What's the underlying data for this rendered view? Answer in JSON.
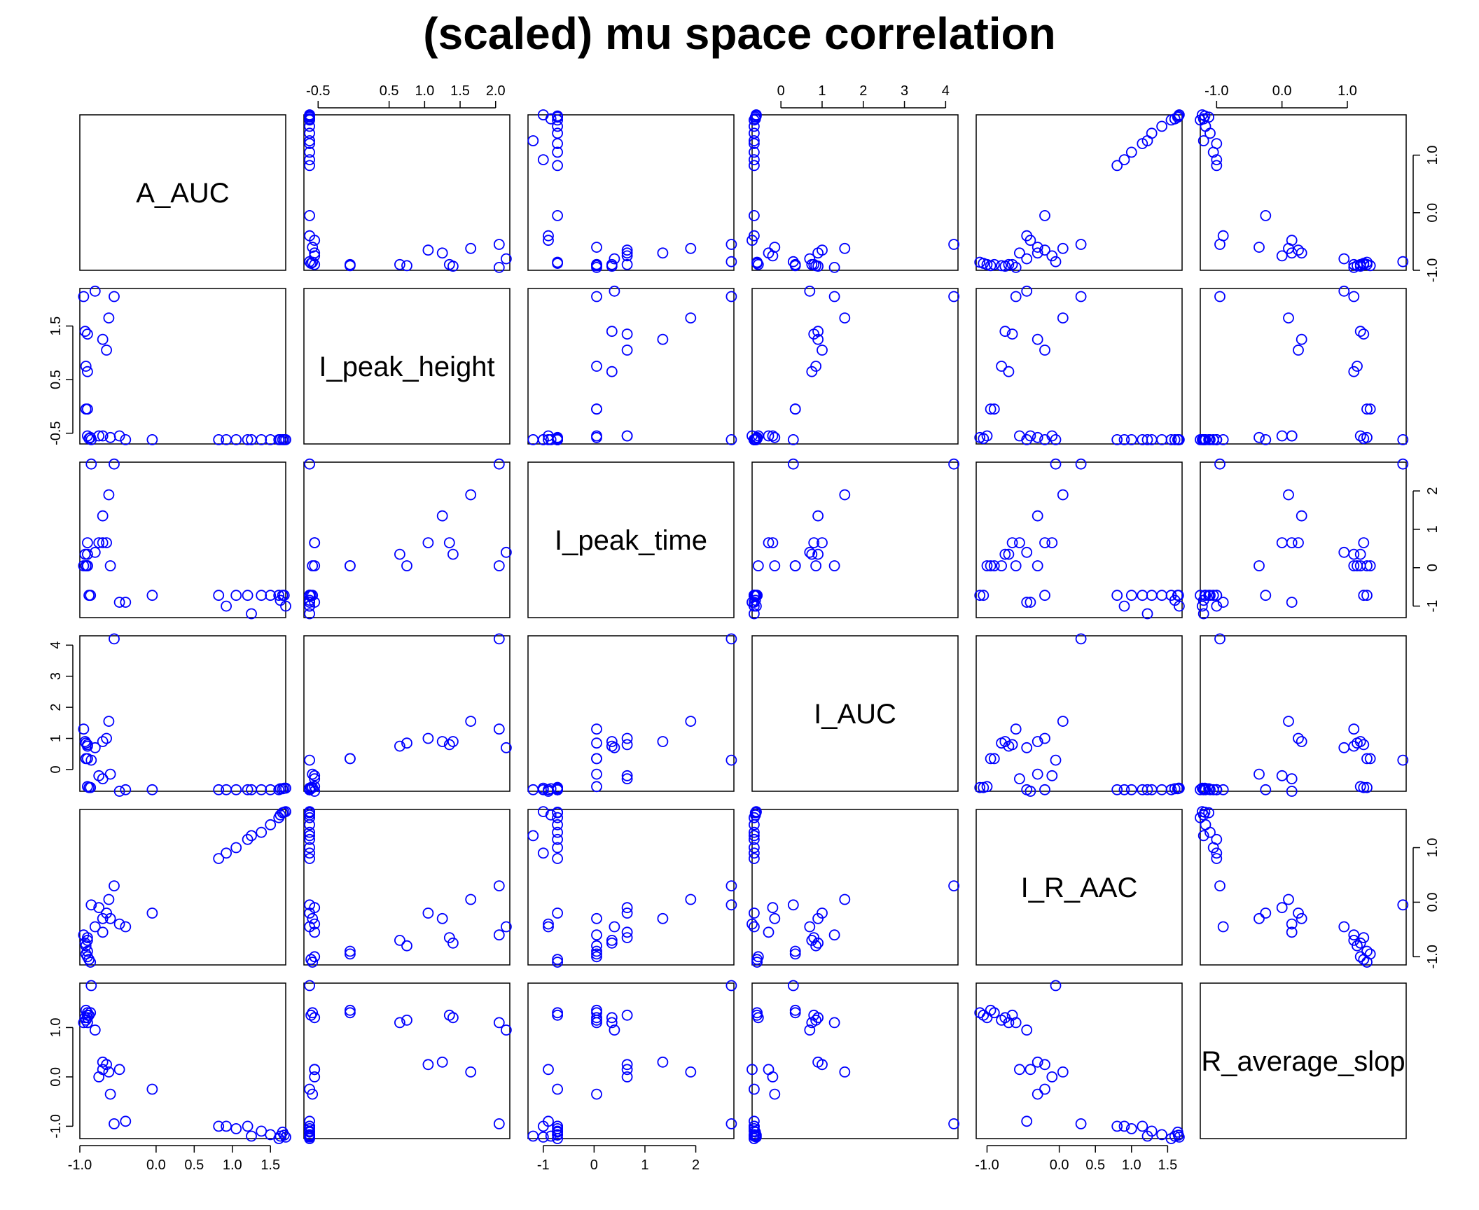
{
  "chart_data": {
    "type": "scatter",
    "title": "(scaled) mu space correlation",
    "variables": [
      "A_AUC",
      "I_peak_height",
      "I_peak_time",
      "I_AUC",
      "I_R_AAC",
      "R_average_slop"
    ],
    "point_color": "#0000ff",
    "grid": false,
    "ranges": {
      "A_AUC": [
        -1.0,
        1.7
      ],
      "I_peak_height": [
        -0.7,
        2.2
      ],
      "I_peak_time": [
        -1.3,
        2.75
      ],
      "I_AUC": [
        -0.7,
        4.3
      ],
      "I_R_AAC": [
        -1.15,
        1.7
      ],
      "R_average_slop": [
        -1.25,
        1.9
      ]
    },
    "axis_ticks": {
      "A_AUC": [
        "-1.0",
        "0.0",
        "0.5",
        "1.0",
        "1.5"
      ],
      "I_peak_height": [
        "-0.5",
        "0.5",
        "1.0",
        "1.5",
        "2.0"
      ],
      "I_peak_time": [
        "-1",
        "0",
        "1",
        "2"
      ],
      "I_AUC": [
        "0",
        "1",
        "2",
        "3",
        "4"
      ],
      "I_R_AAC": [
        "-1.0",
        "0.0",
        "0.5",
        "1.0",
        "1.5"
      ],
      "R_average_slop": [
        "-1.0",
        "0.0",
        "1.0"
      ]
    },
    "left_axis_ticks": {
      "I_peak_height": [
        "-0.5",
        "0.5",
        "1.5"
      ],
      "I_AUC": [
        "0",
        "1",
        "2",
        "3",
        "4"
      ],
      "R_average_slop": [
        "-1.0",
        "0.0",
        "1.0"
      ]
    },
    "right_axis_ticks": {
      "A_AUC": [
        "-1.0",
        "0.0",
        "1.0"
      ],
      "I_peak_time": [
        "-1",
        "0",
        "1",
        "2"
      ],
      "I_R_AAC": [
        "-1.0",
        "0.0",
        "1.0"
      ]
    },
    "observations": [
      {
        "A_AUC": 1.68,
        "I_peak_height": -0.62,
        "I_peak_time": -0.72,
        "I_AUC": -0.6,
        "I_R_AAC": 1.65,
        "R_average_slop": -1.18
      },
      {
        "A_AUC": 1.7,
        "I_peak_height": -0.62,
        "I_peak_time": -1.0,
        "I_AUC": -0.6,
        "I_R_AAC": 1.66,
        "R_average_slop": -1.22
      },
      {
        "A_AUC": 1.66,
        "I_peak_height": -0.62,
        "I_peak_time": -0.72,
        "I_AUC": -0.62,
        "I_R_AAC": 1.64,
        "R_average_slop": -1.12
      },
      {
        "A_AUC": 1.63,
        "I_peak_height": -0.62,
        "I_peak_time": -0.85,
        "I_AUC": -0.62,
        "I_R_AAC": 1.6,
        "R_average_slop": -1.2
      },
      {
        "A_AUC": 1.61,
        "I_peak_height": -0.62,
        "I_peak_time": -0.72,
        "I_AUC": -0.65,
        "I_R_AAC": 1.55,
        "R_average_slop": -1.25
      },
      {
        "A_AUC": 1.5,
        "I_peak_height": -0.62,
        "I_peak_time": -0.72,
        "I_AUC": -0.65,
        "I_R_AAC": 1.42,
        "R_average_slop": -1.17
      },
      {
        "A_AUC": 1.38,
        "I_peak_height": -0.62,
        "I_peak_time": -0.72,
        "I_AUC": -0.65,
        "I_R_AAC": 1.28,
        "R_average_slop": -1.1
      },
      {
        "A_AUC": 1.25,
        "I_peak_height": -0.62,
        "I_peak_time": -1.2,
        "I_AUC": -0.65,
        "I_R_AAC": 1.22,
        "R_average_slop": -1.2
      },
      {
        "A_AUC": 1.2,
        "I_peak_height": -0.62,
        "I_peak_time": -0.72,
        "I_AUC": -0.65,
        "I_R_AAC": 1.15,
        "R_average_slop": -1.0
      },
      {
        "A_AUC": 1.05,
        "I_peak_height": -0.62,
        "I_peak_time": -0.72,
        "I_AUC": -0.65,
        "I_R_AAC": 1.0,
        "R_average_slop": -1.05
      },
      {
        "A_AUC": 0.92,
        "I_peak_height": -0.62,
        "I_peak_time": -1.0,
        "I_AUC": -0.65,
        "I_R_AAC": 0.9,
        "R_average_slop": -1.0
      },
      {
        "A_AUC": 0.82,
        "I_peak_height": -0.62,
        "I_peak_time": -0.72,
        "I_AUC": -0.65,
        "I_R_AAC": 0.8,
        "R_average_slop": -1.0
      },
      {
        "A_AUC": -0.05,
        "I_peak_height": -0.62,
        "I_peak_time": -0.72,
        "I_AUC": -0.65,
        "I_R_AAC": -0.2,
        "R_average_slop": -0.25
      },
      {
        "A_AUC": -0.4,
        "I_peak_height": -0.62,
        "I_peak_time": -0.9,
        "I_AUC": -0.65,
        "I_R_AAC": -0.45,
        "R_average_slop": -0.9
      },
      {
        "A_AUC": -0.9,
        "I_peak_height": -0.55,
        "I_peak_time": 0.05,
        "I_AUC": -0.55,
        "I_R_AAC": -1.0,
        "R_average_slop": 1.2
      },
      {
        "A_AUC": -0.88,
        "I_peak_height": -0.6,
        "I_peak_time": -0.72,
        "I_AUC": -0.58,
        "I_R_AAC": -1.05,
        "R_average_slop": 1.25
      },
      {
        "A_AUC": -0.86,
        "I_peak_height": -0.58,
        "I_peak_time": -0.72,
        "I_AUC": -0.58,
        "I_R_AAC": -1.1,
        "R_average_slop": 1.3
      },
      {
        "A_AUC": -0.92,
        "I_peak_height": -0.05,
        "I_peak_time": 0.05,
        "I_AUC": 0.35,
        "I_R_AAC": -0.95,
        "R_average_slop": 1.35
      },
      {
        "A_AUC": -0.9,
        "I_peak_height": -0.05,
        "I_peak_time": 0.05,
        "I_AUC": 0.35,
        "I_R_AAC": -0.9,
        "R_average_slop": 1.3
      },
      {
        "A_AUC": -0.92,
        "I_peak_height": 0.75,
        "I_peak_time": 0.05,
        "I_AUC": 0.85,
        "I_R_AAC": -0.8,
        "R_average_slop": 1.15
      },
      {
        "A_AUC": -0.9,
        "I_peak_height": 0.65,
        "I_peak_time": 0.35,
        "I_AUC": 0.75,
        "I_R_AAC": -0.7,
        "R_average_slop": 1.1
      },
      {
        "A_AUC": -0.93,
        "I_peak_height": 1.4,
        "I_peak_time": 0.35,
        "I_AUC": 0.9,
        "I_R_AAC": -0.75,
        "R_average_slop": 1.2
      },
      {
        "A_AUC": -0.9,
        "I_peak_height": 1.35,
        "I_peak_time": 0.65,
        "I_AUC": 0.8,
        "I_R_AAC": -0.65,
        "R_average_slop": 1.25
      },
      {
        "A_AUC": -0.95,
        "I_peak_height": 2.05,
        "I_peak_time": 0.05,
        "I_AUC": 1.3,
        "I_R_AAC": -0.6,
        "R_average_slop": 1.1
      },
      {
        "A_AUC": -0.8,
        "I_peak_height": 2.15,
        "I_peak_time": 0.4,
        "I_AUC": 0.7,
        "I_R_AAC": -0.45,
        "R_average_slop": 0.95
      },
      {
        "A_AUC": -0.7,
        "I_peak_height": 1.25,
        "I_peak_time": 1.35,
        "I_AUC": 0.9,
        "I_R_AAC": -0.3,
        "R_average_slop": 0.3
      },
      {
        "A_AUC": -0.65,
        "I_peak_height": 1.05,
        "I_peak_time": 0.65,
        "I_AUC": 1.0,
        "I_R_AAC": -0.2,
        "R_average_slop": 0.25
      },
      {
        "A_AUC": -0.62,
        "I_peak_height": 1.65,
        "I_peak_time": 1.9,
        "I_AUC": 1.55,
        "I_R_AAC": 0.05,
        "R_average_slop": 0.1
      },
      {
        "A_AUC": -0.55,
        "I_peak_height": 2.05,
        "I_peak_time": 2.7,
        "I_AUC": 4.2,
        "I_R_AAC": 0.3,
        "R_average_slop": -0.95
      },
      {
        "A_AUC": -0.48,
        "I_peak_height": -0.55,
        "I_peak_time": -0.9,
        "I_AUC": -0.7,
        "I_R_AAC": -0.4,
        "R_average_slop": 0.15
      },
      {
        "A_AUC": -0.85,
        "I_peak_height": -0.62,
        "I_peak_time": 2.7,
        "I_AUC": 0.3,
        "I_R_AAC": -0.05,
        "R_average_slop": 1.85
      },
      {
        "A_AUC": -0.75,
        "I_peak_height": -0.55,
        "I_peak_time": 0.65,
        "I_AUC": -0.2,
        "I_R_AAC": -0.1,
        "R_average_slop": 0.0
      },
      {
        "A_AUC": -0.6,
        "I_peak_height": -0.58,
        "I_peak_time": 0.05,
        "I_AUC": -0.15,
        "I_R_AAC": -0.3,
        "R_average_slop": -0.35
      },
      {
        "A_AUC": -0.7,
        "I_peak_height": -0.55,
        "I_peak_time": 0.65,
        "I_AUC": -0.3,
        "I_R_AAC": -0.55,
        "R_average_slop": 0.15
      }
    ]
  }
}
